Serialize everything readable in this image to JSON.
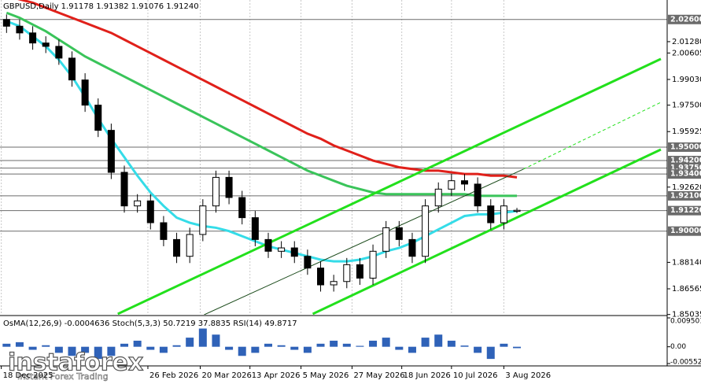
{
  "chart_data": {
    "type": "candlestick",
    "title": "GBPUSD,Daily  1.91178 1.91382 1.91076 1.91240",
    "x": [
      0,
      1,
      2,
      3,
      4,
      5,
      6,
      7,
      8,
      9,
      10,
      11,
      12,
      13,
      14,
      15,
      16,
      17,
      18,
      19,
      20,
      21,
      22,
      23,
      24,
      25,
      26,
      27,
      28,
      29,
      30,
      31,
      32,
      33,
      34,
      35,
      36,
      37,
      38,
      39
    ],
    "open": [
      2.026,
      2.022,
      2.018,
      2.012,
      2.01,
      2.003,
      1.99,
      1.975,
      1.96,
      1.935,
      1.915,
      1.918,
      1.905,
      1.895,
      1.885,
      1.898,
      1.915,
      1.932,
      1.92,
      1.908,
      1.895,
      1.888,
      1.89,
      1.885,
      1.878,
      1.868,
      1.87,
      1.88,
      1.872,
      1.888,
      1.902,
      1.895,
      1.885,
      1.915,
      1.925,
      1.93,
      1.928,
      1.915,
      1.905,
      1.91178
    ],
    "high": [
      2.029,
      2.026,
      2.022,
      2.016,
      2.014,
      2.007,
      1.994,
      1.979,
      1.964,
      1.939,
      1.922,
      1.922,
      1.909,
      1.899,
      1.902,
      1.919,
      1.936,
      1.936,
      1.924,
      1.912,
      1.899,
      1.894,
      1.894,
      1.889,
      1.882,
      1.874,
      1.884,
      1.884,
      1.892,
      1.906,
      1.906,
      1.899,
      1.919,
      1.929,
      1.934,
      1.934,
      1.932,
      1.919,
      1.919,
      1.91382
    ],
    "low": [
      2.018,
      2.014,
      2.008,
      2.006,
      1.999,
      1.986,
      1.971,
      1.956,
      1.931,
      1.911,
      1.911,
      1.901,
      1.891,
      1.881,
      1.881,
      1.894,
      1.911,
      1.916,
      1.904,
      1.891,
      1.884,
      1.884,
      1.881,
      1.874,
      1.864,
      1.864,
      1.866,
      1.868,
      1.868,
      1.884,
      1.891,
      1.881,
      1.881,
      1.911,
      1.921,
      1.924,
      1.911,
      1.901,
      1.901,
      1.91076
    ],
    "close": [
      2.022,
      2.018,
      2.012,
      2.01,
      2.003,
      1.99,
      1.975,
      1.96,
      1.935,
      1.915,
      1.918,
      1.905,
      1.895,
      1.885,
      1.898,
      1.915,
      1.932,
      1.92,
      1.908,
      1.895,
      1.888,
      1.89,
      1.885,
      1.878,
      1.868,
      1.87,
      1.88,
      1.872,
      1.888,
      1.902,
      1.895,
      1.885,
      1.915,
      1.925,
      1.93,
      1.928,
      1.915,
      1.905,
      1.915,
      1.9124
    ],
    "up_color": "#ffffff",
    "down_color": "#000000",
    "xlim": [
      -0.5,
      50
    ],
    "ylim": [
      1.8502,
      2.0376
    ],
    "yticks": [
      {
        "value": 2.0128,
        "label": "2.01280"
      },
      2.00605,
      {
        "value": 1.9903,
        "label": "1.99030"
      },
      {
        "value": 1.975,
        "label": "1.97500"
      },
      1.95925,
      {
        "value": 1.9262,
        "label": "1.92620"
      },
      {
        "value": 1.8814,
        "label": "1.88140"
      },
      1.86565,
      1.85035
    ],
    "xticks": [
      {
        "value": -0.4,
        "label": "18 Dec 2025"
      },
      {
        "value": 10.8,
        "label": "26 Feb 2026"
      },
      {
        "value": 14.8,
        "label": "20 Mar 2026"
      },
      {
        "value": 18.6,
        "label": "13 Apr 2026"
      },
      {
        "value": 22.5,
        "label": "5 May 2026"
      },
      {
        "value": 26.4,
        "label": "27 May 2026"
      },
      {
        "value": 30.2,
        "label": "18 Jun 2026"
      },
      {
        "value": 34,
        "label": "10 Jul 2026"
      },
      {
        "value": 38,
        "label": "3 Aug 2026"
      }
    ],
    "levels": [
      {
        "value": 2.026,
        "label": "2.02600"
      },
      {
        "value": 1.95,
        "label": "1.95000"
      },
      {
        "value": 1.942,
        "label": "1.94200"
      },
      {
        "value": 1.9375,
        "label": "1.93750"
      },
      {
        "value": 1.934,
        "label": "1.93400"
      },
      {
        "value": 1.921,
        "label": "1.92100"
      },
      {
        "value": 1.9122,
        "label": "1.91220"
      },
      {
        "value": 1.9,
        "label": "1.90000"
      }
    ],
    "level_color": "#6b6b6b",
    "moving_averages": [
      {
        "color": "#e0201a",
        "values": [
          2.04,
          2.038,
          2.036,
          2.033,
          2.03,
          2.027,
          2.024,
          2.021,
          2.018,
          2.014,
          2.01,
          2.006,
          2.002,
          1.998,
          1.994,
          1.99,
          1.986,
          1.982,
          1.978,
          1.974,
          1.97,
          1.966,
          1.962,
          1.958,
          1.955,
          1.951,
          1.948,
          1.945,
          1.942,
          1.94,
          1.938,
          1.937,
          1.936,
          1.936,
          1.935,
          1.934,
          1.934,
          1.933,
          1.933,
          1.932
        ]
      },
      {
        "color": "#3ac45a",
        "values": [
          2.03,
          2.027,
          2.023,
          2.019,
          2.014,
          2.009,
          2.004,
          2.0,
          1.996,
          1.992,
          1.988,
          1.984,
          1.98,
          1.976,
          1.972,
          1.968,
          1.964,
          1.96,
          1.956,
          1.952,
          1.948,
          1.944,
          1.94,
          1.936,
          1.933,
          1.93,
          1.927,
          1.925,
          1.923,
          1.922,
          1.922,
          1.922,
          1.922,
          1.922,
          1.922,
          1.922,
          1.921,
          1.921,
          1.921,
          1.921
        ]
      },
      {
        "color": "#35dce8",
        "values": [
          2.025,
          2.022,
          2.016,
          2.01,
          2.002,
          1.992,
          1.98,
          1.967,
          1.955,
          1.944,
          1.933,
          1.923,
          1.915,
          1.908,
          1.905,
          1.903,
          1.902,
          1.9,
          1.897,
          1.894,
          1.891,
          1.889,
          1.887,
          1.885,
          1.883,
          1.882,
          1.882,
          1.883,
          1.885,
          1.888,
          1.89,
          1.893,
          1.897,
          1.901,
          1.905,
          1.909,
          1.91,
          1.91,
          1.911,
          1.912
        ]
      }
    ],
    "trendlines": [
      {
        "color": "#22e01c",
        "width": 3,
        "x": [
          8.5,
          50
        ],
        "y": [
          1.8507,
          2.0025
        ]
      },
      {
        "color": "#22e01c",
        "width": 3,
        "x": [
          23.4,
          50
        ],
        "y": [
          1.8507,
          1.9486
        ]
      },
      {
        "color": "#1a4a1a",
        "width": 1,
        "x": [
          15.1,
          39.5
        ],
        "y": [
          1.8502,
          1.9369
        ]
      },
      {
        "color": "#22e01c",
        "width": 1,
        "dashed": true,
        "x": [
          39.5,
          50
        ],
        "y": [
          1.9369,
          1.9767
        ]
      }
    ],
    "indicator": {
      "type": "bar",
      "title": "OsMA(12,26,9) -0.0004636  Stoch(5,3,3) 50.7219 37.8835  RSI(14) 49.8717",
      "color": "#2f62b8",
      "values": [
        0.001,
        0.0015,
        -0.001,
        0.0005,
        -0.002,
        -0.003,
        -0.002,
        -0.004,
        -0.003,
        0.001,
        0.002,
        -0.001,
        -0.002,
        0.0005,
        0.003,
        0.006,
        0.004,
        -0.001,
        -0.003,
        -0.002,
        0.001,
        0.0005,
        -0.001,
        -0.002,
        0.001,
        0.002,
        0.001,
        0.0003,
        0.002,
        0.003,
        -0.001,
        -0.002,
        0.003,
        0.004,
        0.002,
        0.0004,
        -0.002,
        -0.004,
        0.001,
        -0.0004636
      ],
      "ylim": [
        -0.005524,
        0.009501
      ],
      "yticks": [
        {
          "value": 0.009501,
          "label": "0.0095010"
        },
        {
          "value": 0,
          "label": "0.00"
        },
        -0.005524
      ]
    }
  },
  "watermark": {
    "name": "instaforex",
    "tagline": "Instant Forex Trading"
  }
}
